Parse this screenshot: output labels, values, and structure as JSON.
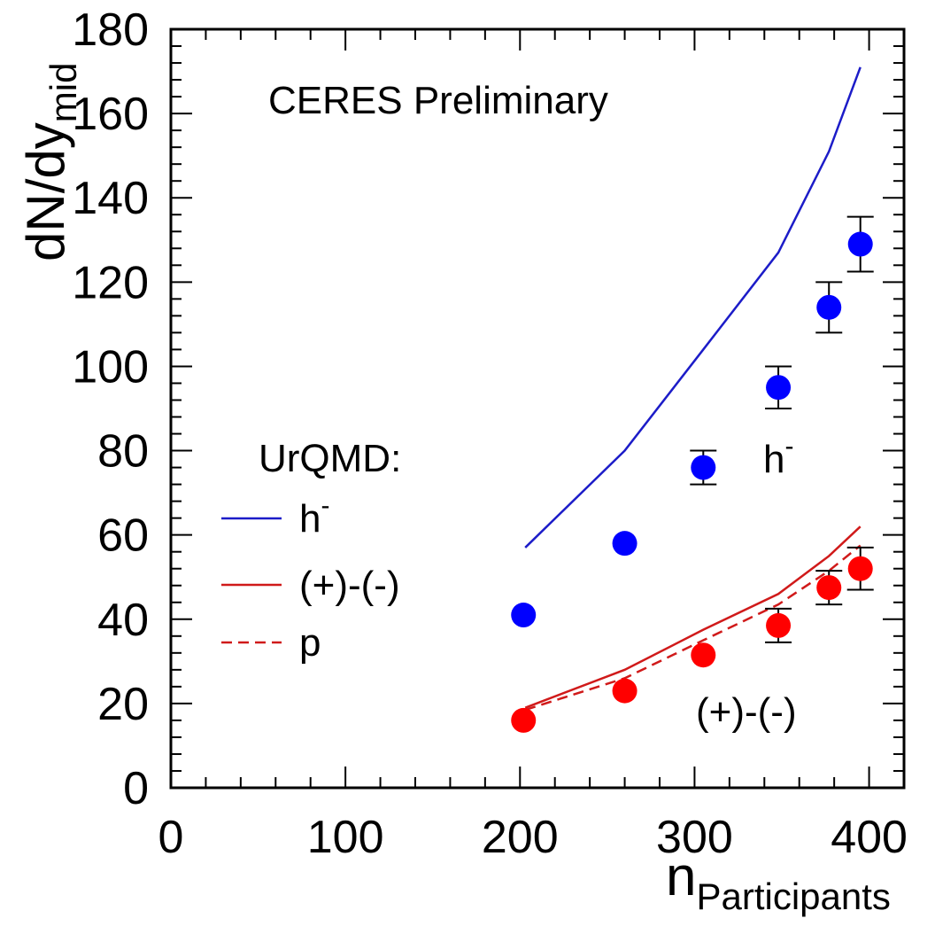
{
  "chart_data": {
    "type": "scatter",
    "annotation": "CERES Preliminary",
    "xlabel": {
      "main": "n",
      "sub": "Participants"
    },
    "ylabel": {
      "main": "dN/dy",
      "sub": "mid"
    },
    "xlim": [
      0,
      420
    ],
    "ylim": [
      0,
      180
    ],
    "x_ticks": [
      "0",
      "100",
      "200",
      "300",
      "400"
    ],
    "y_ticks": [
      "0",
      "20",
      "40",
      "60",
      "80",
      "100",
      "120",
      "140",
      "160",
      "180"
    ],
    "x_tick_values": [
      0,
      100,
      200,
      300,
      400
    ],
    "y_tick_values": [
      0,
      20,
      40,
      60,
      80,
      100,
      120,
      140,
      160,
      180
    ],
    "colors": {
      "blue": "#0000ff",
      "red": "#ff0000",
      "blue_line": "#1c1cc8",
      "red_line": "#d01a1a"
    },
    "data_series": [
      {
        "label": {
          "main": "h",
          "sup": "-"
        },
        "color": "#0000ff",
        "points": [
          {
            "x": 202,
            "y": 41,
            "err": null
          },
          {
            "x": 260,
            "y": 58,
            "err": null
          },
          {
            "x": 305,
            "y": 76,
            "err": 4
          },
          {
            "x": 348,
            "y": 95,
            "err": 5
          },
          {
            "x": 377,
            "y": 114,
            "err": 6
          },
          {
            "x": 395,
            "y": 129,
            "err": 6.5
          }
        ]
      },
      {
        "label": {
          "main": "(+)-(-)"
        },
        "color": "#ff0000",
        "points": [
          {
            "x": 202,
            "y": 16,
            "err": null
          },
          {
            "x": 260,
            "y": 23,
            "err": null
          },
          {
            "x": 305,
            "y": 31.5,
            "err": null
          },
          {
            "x": 348,
            "y": 38.5,
            "err": 4
          },
          {
            "x": 377,
            "y": 47.5,
            "err": 4
          },
          {
            "x": 395,
            "y": 52,
            "err": 5
          }
        ]
      }
    ],
    "model_curves": [
      {
        "name": {
          "main": "h",
          "sup": "-"
        },
        "style": "solid",
        "color": "#1c1cc8",
        "x": [
          203,
          260,
          305,
          348,
          377,
          395
        ],
        "y": [
          57,
          80,
          104,
          127,
          151,
          171
        ]
      },
      {
        "name": {
          "main": "(+)-(-)"
        },
        "style": "solid",
        "color": "#d01a1a",
        "x": [
          203,
          260,
          305,
          348,
          377,
          395
        ],
        "y": [
          19,
          28,
          37.5,
          46,
          55,
          62
        ]
      },
      {
        "name": {
          "main": "p"
        },
        "style": "dashed",
        "color": "#d01a1a",
        "x": [
          203,
          260,
          305,
          348,
          377,
          395
        ],
        "y": [
          18.5,
          26,
          35,
          43.5,
          51.5,
          57.5
        ]
      }
    ],
    "legend": {
      "title": "UrQMD:",
      "placement": "middle-left"
    }
  }
}
